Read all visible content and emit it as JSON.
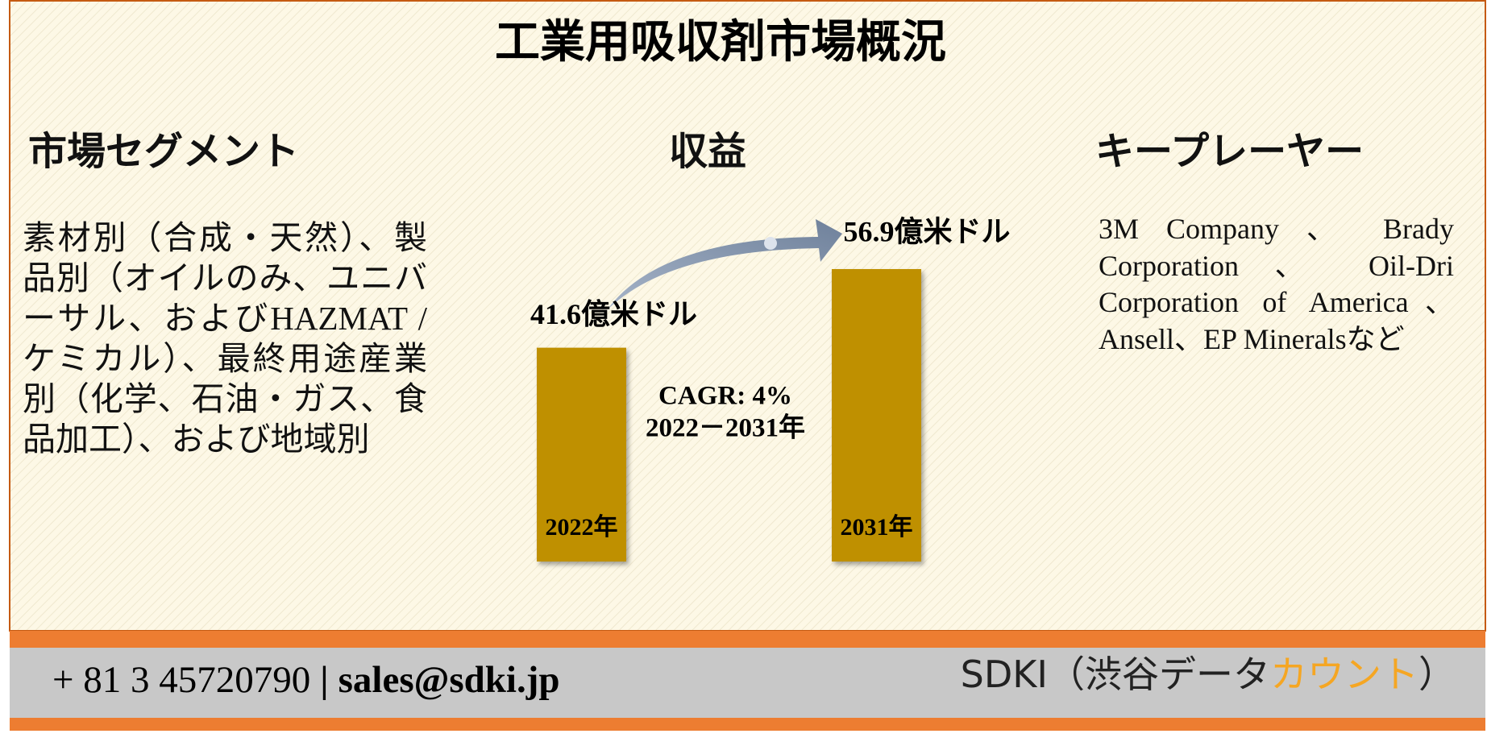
{
  "title": "工業用吸収剤市場概況",
  "sections": {
    "segments": {
      "heading": "市場セグメント",
      "text": "素材別（合成・天然）、製品別（オイルのみ、ユニバーサル、およびHAZMAT /ケミカル）、最終用途産業別（化学、石油・ガス、食品加工）、および地域別"
    },
    "revenue": {
      "heading": "収益",
      "cagr": "CAGR: 4%",
      "period": "2022－2031年"
    },
    "players": {
      "heading": "キープレーヤー",
      "text": "3M Company 、 Brady Corporation 、 Oil-Dri Corporation of America、Ansell、EP Mineralsなど"
    }
  },
  "chart_data": {
    "type": "bar",
    "categories": [
      "2022年",
      "2031年"
    ],
    "values": [
      41.6,
      56.9
    ],
    "value_labels": [
      "41.6億米ドル",
      "56.9億米ドル"
    ],
    "color": "#bf9000"
  },
  "footer": {
    "contact": [
      "+ 81 3 45720790",
      "|",
      "sales@sdki.jp"
    ],
    "brand": [
      "SDKI（渋谷データ",
      "カウント",
      "）"
    ]
  }
}
